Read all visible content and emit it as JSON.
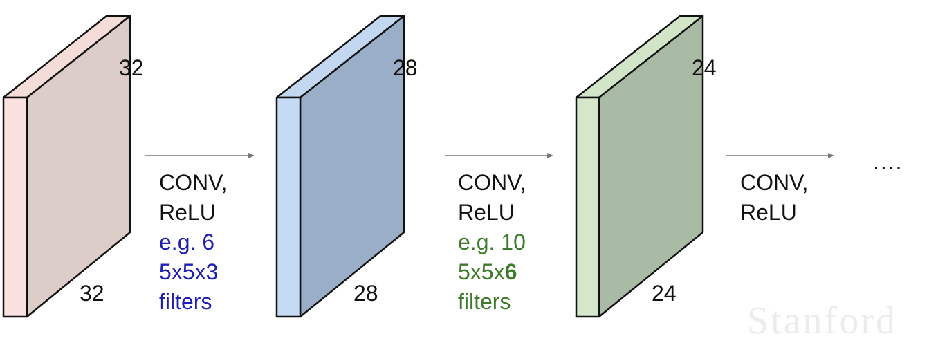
{
  "volumes": [
    {
      "id": "input",
      "top_label": "32",
      "bottom_label": "32",
      "colors": {
        "front": "#f8e1de",
        "side": "#dccdc9",
        "top": "#f4dcd8"
      }
    },
    {
      "id": "conv1",
      "top_label": "28",
      "bottom_label": "28",
      "colors": {
        "front": "#c5daf3",
        "side": "#9aaec8",
        "top": "#c3d7f1"
      }
    },
    {
      "id": "conv2",
      "top_label": "24",
      "bottom_label": "24",
      "colors": {
        "front": "#d5e7ca",
        "side": "#a9bba5",
        "top": "#d3e5c8"
      }
    }
  ],
  "arrows": [
    {
      "line1": "CONV,",
      "line2": "ReLU",
      "detail_line1": "e.g. 6",
      "detail_line2_prefix": "5x5x3",
      "detail_line2_bold": "",
      "detail_line3": "filters",
      "detail_color": "#1f1fb0"
    },
    {
      "line1": "CONV,",
      "line2": "ReLU",
      "detail_line1": "e.g. 10",
      "detail_line2_prefix": "5x5x",
      "detail_line2_bold": "6",
      "detail_line3": "filters",
      "detail_color": "#3d7a2a"
    },
    {
      "line1": "CONV,",
      "line2": "ReLU"
    }
  ],
  "ellipsis": "....",
  "watermark": "Stanford",
  "colors": {
    "arrow": "#777777",
    "text": "#111111",
    "edge": "#111111"
  }
}
